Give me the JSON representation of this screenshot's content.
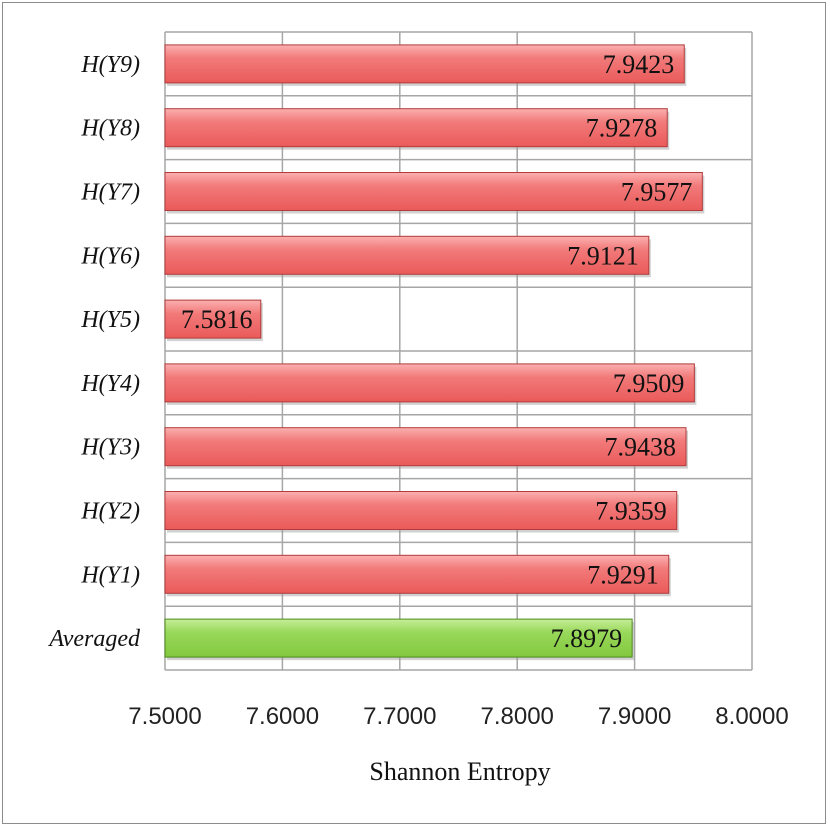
{
  "chart_data": {
    "type": "bar",
    "orientation": "horizontal",
    "categories": [
      "Averaged",
      "H(Y1)",
      "H(Y2)",
      "H(Y3)",
      "H(Y4)",
      "H(Y5)",
      "H(Y6)",
      "H(Y7)",
      "H(Y8)",
      "H(Y9)"
    ],
    "values": [
      7.8979,
      7.9291,
      7.9359,
      7.9438,
      7.9509,
      7.5816,
      7.9121,
      7.9577,
      7.9278,
      7.9423
    ],
    "value_labels": [
      "7.8979",
      "7.9291",
      "7.9359",
      "7.9438",
      "7.9509",
      "7.5816",
      "7.9121",
      "7.9577",
      "7.9278",
      "7.9423"
    ],
    "xlabel": "Shannon Entropy",
    "ylabel": "",
    "title": "",
    "xlim": [
      7.5,
      8.0
    ],
    "xticks": [
      "7.5000",
      "7.6000",
      "7.7000",
      "7.8000",
      "7.9000",
      "8.0000"
    ],
    "grid": true,
    "legend": "none",
    "colors": {
      "bar": "#f06a6a",
      "bar_highlight": "#fbb0b0",
      "bar_edge": "#b23b3b",
      "averaged_bar": "#8ed24a",
      "averaged_highlight": "#c6ee98",
      "averaged_edge": "#4c8a1c",
      "grid": "#a6a6a6"
    }
  }
}
